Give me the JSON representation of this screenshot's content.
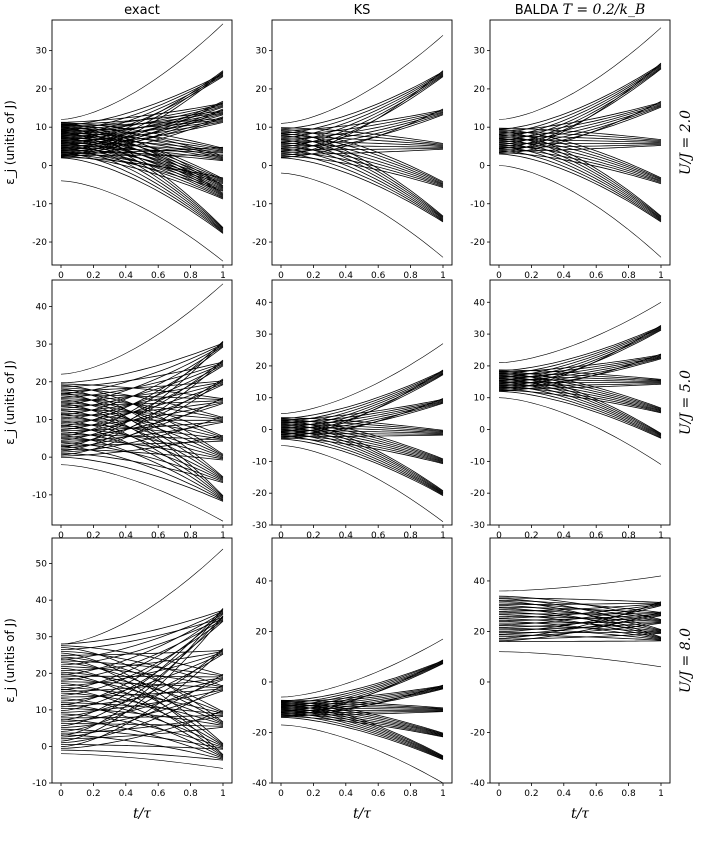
{
  "column_titles": [
    "exact",
    "KS",
    "BALDA T = 0.2/k_B"
  ],
  "row_labels": [
    "U/J = 2.0",
    "U/J = 5.0",
    "U/J = 8.0"
  ],
  "y_axis_label": "ε_j (unitis of J)",
  "x_axis_label": "t/τ",
  "chart_data": [
    {
      "type": "line",
      "row": 0,
      "col": 0,
      "column_title": "exact",
      "row_label": "U/J = 2.0",
      "xlim": [
        0,
        1
      ],
      "ylim": [
        -26,
        38
      ],
      "yticks": [
        -20,
        -10,
        0,
        10,
        20,
        30
      ],
      "xticks": [
        0,
        0.2,
        0.4,
        0.6,
        0.8,
        1.0
      ],
      "fan_start": [
        2,
        10
      ],
      "fan_end": [
        -17,
        -8,
        -6,
        -4,
        2,
        4,
        12,
        14,
        16,
        24
      ],
      "outer_start": [
        -4,
        12
      ],
      "outer_end": [
        -25,
        37
      ]
    },
    {
      "type": "line",
      "row": 0,
      "col": 1,
      "column_title": "KS",
      "row_label": "U/J = 2.0",
      "xlim": [
        0,
        1
      ],
      "ylim": [
        -26,
        38
      ],
      "yticks": [
        -20,
        -10,
        0,
        10,
        20,
        30
      ],
      "xticks": [
        0,
        0.2,
        0.4,
        0.6,
        0.8,
        1.0
      ],
      "fan_start": [
        2,
        9
      ],
      "fan_end": [
        -14,
        -5,
        5,
        14,
        24
      ],
      "outer_start": [
        -2,
        11
      ],
      "outer_end": [
        -24,
        34
      ]
    },
    {
      "type": "line",
      "row": 0,
      "col": 2,
      "column_title": "BALDA T = 0.2/k_B",
      "row_label": "U/J = 2.0",
      "xlim": [
        0,
        1
      ],
      "ylim": [
        -26,
        38
      ],
      "yticks": [
        -20,
        -10,
        0,
        10,
        20,
        30
      ],
      "xticks": [
        0,
        0.2,
        0.4,
        0.6,
        0.8,
        1.0
      ],
      "fan_start": [
        3,
        9
      ],
      "fan_end": [
        -14,
        -4,
        6,
        16,
        26
      ],
      "outer_start": [
        0,
        12
      ],
      "outer_end": [
        -24,
        36
      ]
    },
    {
      "type": "line",
      "row": 1,
      "col": 0,
      "column_title": "exact",
      "row_label": "U/J = 5.0",
      "xlim": [
        0,
        1
      ],
      "ylim": [
        -18,
        47
      ],
      "yticks": [
        -10,
        0,
        10,
        20,
        30,
        40
      ],
      "xticks": [
        0,
        0.2,
        0.4,
        0.6,
        0.8,
        1.0
      ],
      "fan_start": [
        0,
        17
      ],
      "fan_end": [
        -11,
        -6,
        0,
        5,
        10,
        15,
        20,
        25,
        30
      ],
      "outer_start": [
        -2,
        22
      ],
      "outer_end": [
        -17,
        46
      ]
    },
    {
      "type": "line",
      "row": 1,
      "col": 1,
      "column_title": "KS",
      "row_label": "U/J = 5.0",
      "xlim": [
        0,
        1
      ],
      "ylim": [
        -30,
        47
      ],
      "yticks": [
        -30,
        -20,
        -10,
        0,
        10,
        20,
        30,
        40
      ],
      "xticks": [
        0,
        0.2,
        0.4,
        0.6,
        0.8,
        1.0
      ],
      "fan_start": [
        -3,
        3
      ],
      "fan_end": [
        -20,
        -10,
        -1,
        9,
        18
      ],
      "outer_start": [
        -5,
        5
      ],
      "outer_end": [
        -29,
        27
      ]
    },
    {
      "type": "line",
      "row": 1,
      "col": 2,
      "column_title": "BALDA T = 0.2/k_B",
      "row_label": "U/J = 5.0",
      "xlim": [
        0,
        1
      ],
      "ylim": [
        -30,
        47
      ],
      "yticks": [
        -30,
        -20,
        -10,
        0,
        10,
        20,
        30,
        40
      ],
      "xticks": [
        0,
        0.2,
        0.4,
        0.6,
        0.8,
        1.0
      ],
      "fan_start": [
        12,
        18
      ],
      "fan_end": [
        -2,
        6,
        15,
        23,
        32
      ],
      "outer_start": [
        10,
        21
      ],
      "outer_end": [
        -11,
        40
      ]
    },
    {
      "type": "line",
      "row": 2,
      "col": 0,
      "column_title": "exact",
      "row_label": "U/J = 8.0",
      "xlim": [
        0,
        1
      ],
      "ylim": [
        -10,
        57
      ],
      "yticks": [
        -10,
        0,
        10,
        20,
        30,
        40,
        50
      ],
      "xticks": [
        0,
        0.2,
        0.4,
        0.6,
        0.8,
        1.0
      ],
      "fan_start": [
        -1,
        24
      ],
      "fan_end": [
        -3,
        0,
        6,
        9,
        16,
        19,
        26,
        35,
        37
      ],
      "outer_start": [
        -2,
        28
      ],
      "outer_end": [
        -6,
        54
      ]
    },
    {
      "type": "line",
      "row": 2,
      "col": 1,
      "column_title": "KS",
      "row_label": "U/J = 8.0",
      "xlim": [
        0,
        1
      ],
      "ylim": [
        -40,
        57
      ],
      "yticks": [
        -40,
        -20,
        0,
        20,
        40
      ],
      "xticks": [
        0,
        0.2,
        0.4,
        0.6,
        0.8,
        1.0
      ],
      "fan_start": [
        -14,
        -8
      ],
      "fan_end": [
        -30,
        -21,
        -11,
        -2,
        8
      ],
      "outer_start": [
        -17,
        -6
      ],
      "outer_end": [
        -40,
        17
      ]
    },
    {
      "type": "line",
      "row": 2,
      "col": 2,
      "column_title": "BALDA T = 0.2/k_B",
      "row_label": "U/J = 8.0",
      "xlim": [
        0,
        1
      ],
      "ylim": [
        -40,
        57
      ],
      "yticks": [
        -40,
        -20,
        0,
        20,
        40
      ],
      "xticks": [
        0,
        0.2,
        0.4,
        0.6,
        0.8,
        1.0
      ],
      "fan_start": [
        16,
        32
      ],
      "fan_end": [
        17,
        20,
        24,
        27,
        31
      ],
      "outer_start": [
        12,
        36
      ],
      "outer_end": [
        6,
        42
      ]
    }
  ]
}
